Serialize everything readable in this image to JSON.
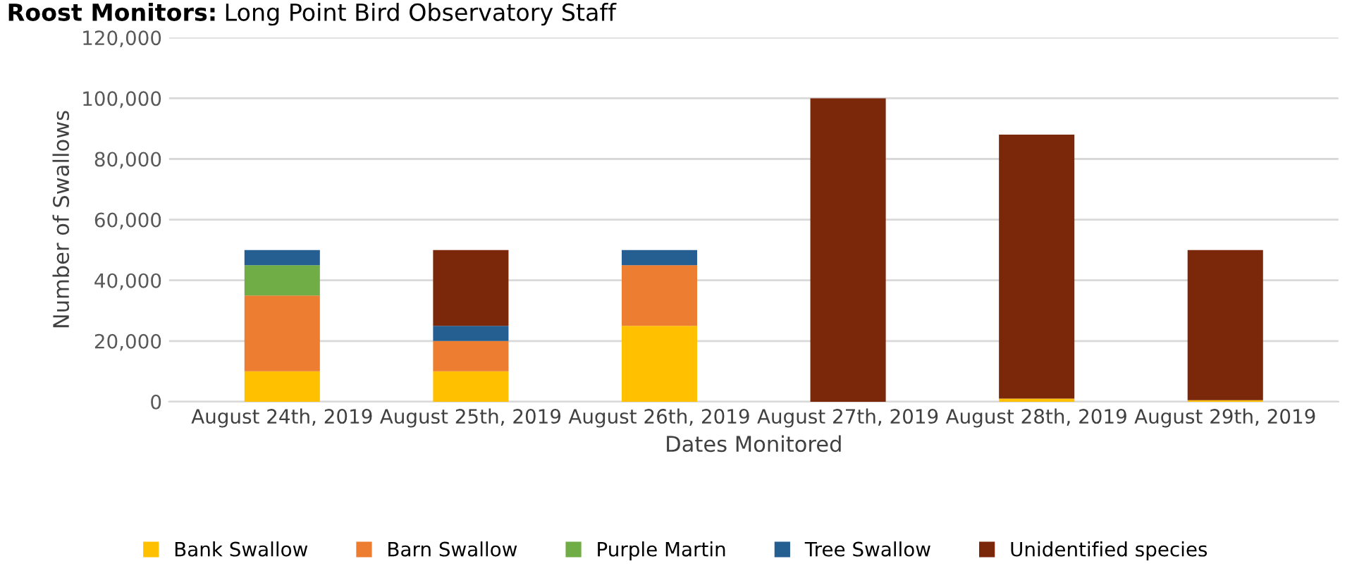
{
  "chart_data": {
    "type": "bar",
    "stacked": true,
    "xlabel": "Dates Monitored",
    "ylabel": "Number of Swallows",
    "annotations": [
      "Roost Monitors:",
      "Long Point Bird Observatory Staff"
    ],
    "categories": [
      "August 24th, 2019",
      "August 25th, 2019",
      "August 26th, 2019",
      "August 27th, 2019",
      "August 28th, 2019",
      "August 29th, 2019"
    ],
    "series": [
      {
        "name": "Bank Swallow",
        "color": "#ffc000",
        "values": [
          10000,
          10000,
          25000,
          0,
          1000,
          500
        ]
      },
      {
        "name": "Barn Swallow",
        "color": "#ed7d31",
        "values": [
          25000,
          10000,
          20000,
          0,
          0,
          0
        ]
      },
      {
        "name": "Purple Martin",
        "color": "#70ad47",
        "values": [
          10000,
          0,
          0,
          0,
          0,
          0
        ]
      },
      {
        "name": "Tree Swallow",
        "color": "#255e91",
        "values": [
          5000,
          5000,
          5000,
          0,
          0,
          0
        ]
      },
      {
        "name": "Unidentified species",
        "color": "#7a270a",
        "values": [
          0,
          25000,
          0,
          100000,
          87000,
          49500
        ]
      }
    ],
    "ylim": [
      0,
      120000
    ],
    "yticks": [
      {
        "value": 0,
        "label": "0"
      },
      {
        "value": 20000,
        "label": "20,000"
      },
      {
        "value": 40000,
        "label": "40,000"
      },
      {
        "value": 60000,
        "label": "60,000"
      },
      {
        "value": 80000,
        "label": "80,000"
      },
      {
        "value": 100000,
        "label": "100,000"
      },
      {
        "value": 120000,
        "label": "120,000"
      }
    ],
    "grid": "y",
    "legend": "bottom"
  }
}
